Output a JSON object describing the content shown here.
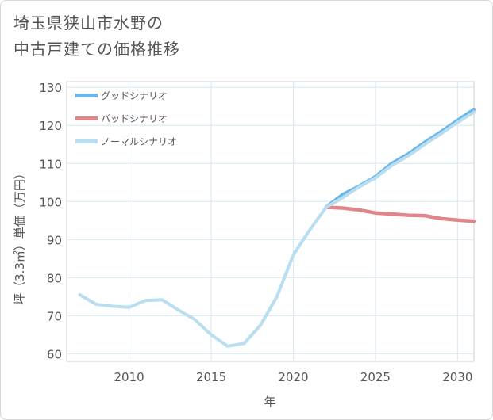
{
  "title_line1": "埼玉県狭山市水野の",
  "title_line2": "中古戸建ての価格推移",
  "chart_data": {
    "type": "line",
    "title": "埼玉県狭山市水野の中古戸建ての価格推移",
    "xlabel": "年",
    "ylabel": "坪（3.3㎡）単価（万円）",
    "xlim": [
      2006.2,
      2031
    ],
    "ylim": [
      58,
      131.5
    ],
    "xticks": [
      2010,
      2015,
      2020,
      2025,
      2030
    ],
    "yticks": [
      60,
      70,
      80,
      90,
      100,
      110,
      120,
      130
    ],
    "grid": true,
    "legend_position": "top-left",
    "series": [
      {
        "name": "グッドシナリオ",
        "color": "#6cb6e8",
        "x": [
          2022,
          2023,
          2024,
          2025,
          2026,
          2027,
          2028,
          2029,
          2030,
          2031
        ],
        "y": [
          98.5,
          101.8,
          104,
          106.5,
          110,
          112.5,
          115.5,
          118.3,
          121.3,
          124.2
        ]
      },
      {
        "name": "バッドシナリオ",
        "color": "#e0868b",
        "x": [
          2022,
          2023,
          2024,
          2025,
          2026,
          2027,
          2028,
          2029,
          2030,
          2031
        ],
        "y": [
          98.5,
          98.3,
          97.8,
          97,
          96.7,
          96.4,
          96.3,
          95.5,
          95.1,
          94.8
        ]
      },
      {
        "name": "ノーマルシナリオ",
        "color": "#b8def0",
        "x": [
          2007,
          2008,
          2009,
          2010,
          2011,
          2012,
          2013,
          2014,
          2015,
          2016,
          2017,
          2018,
          2019,
          2020,
          2021,
          2022,
          2023,
          2024,
          2025,
          2026,
          2027,
          2028,
          2029,
          2030,
          2031
        ],
        "y": [
          75.5,
          73,
          72.5,
          72.2,
          74,
          74.2,
          71.5,
          69,
          65,
          62,
          62.7,
          67.5,
          75,
          86,
          92.5,
          98.5,
          101,
          103.8,
          106.2,
          109.5,
          112,
          115,
          117.8,
          120.8,
          123.5
        ]
      }
    ]
  }
}
